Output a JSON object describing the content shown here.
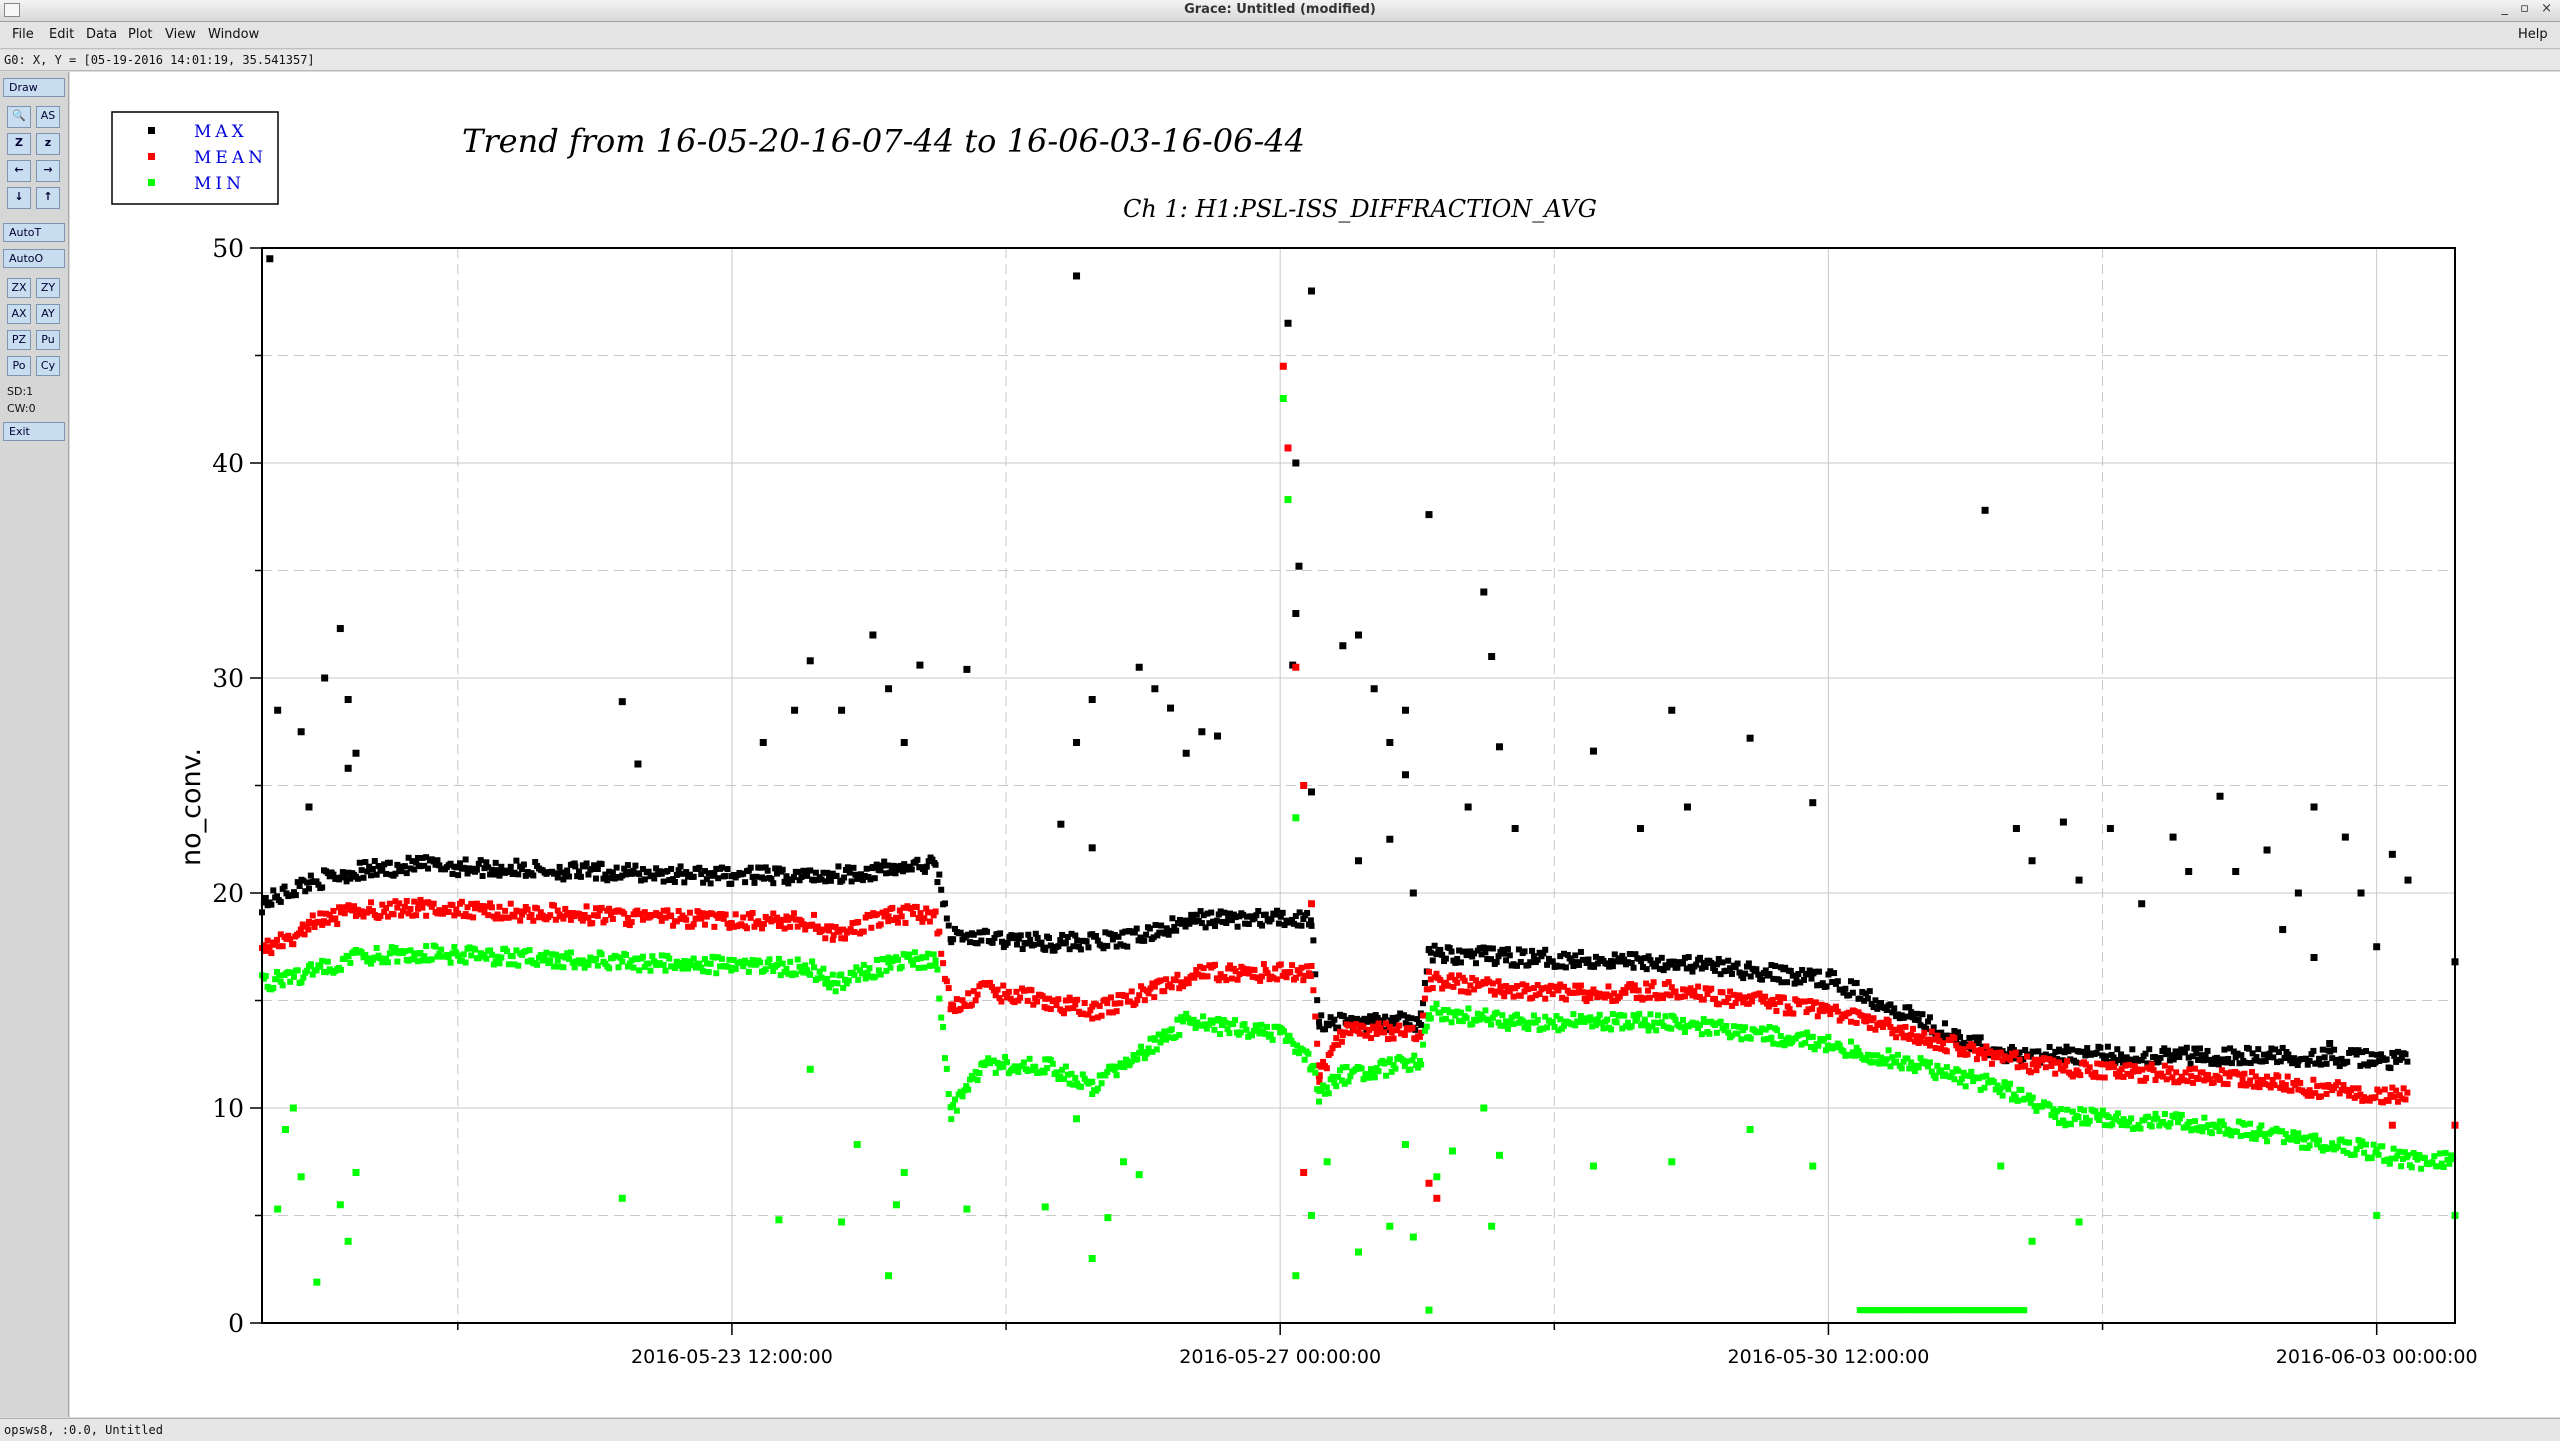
{
  "window": {
    "title": "Grace: Untitled (modified)",
    "controls": [
      "_",
      "▫",
      "×"
    ]
  },
  "menu": {
    "items": [
      "File",
      "Edit",
      "Data",
      "Plot",
      "View",
      "Window"
    ],
    "help": "Help"
  },
  "locator": "G0: X, Y = [05-19-2016 14:01:19, 35.541357]",
  "toolbar": {
    "draw": "Draw",
    "pair_buttons": [
      [
        "🔍",
        "AS"
      ],
      [
        "Z",
        "z"
      ],
      [
        "←",
        "→"
      ],
      [
        "↓",
        "↑"
      ]
    ],
    "autot": "AutoT",
    "autoo": "AutoO",
    "ops": [
      [
        "ZX",
        "ZY"
      ],
      [
        "AX",
        "AY"
      ],
      [
        "PZ",
        "Pu"
      ],
      [
        "Po",
        "Cy"
      ]
    ],
    "sd": "SD:1",
    "cw": "CW:0",
    "exit": "Exit"
  },
  "status_bottom": "opsws8, :0.0, Untitled",
  "chart_data": {
    "type": "scatter",
    "title": "Trend from 16-05-20-16-07-44 to 16-06-03-16-06-44",
    "subtitle": "Ch 1: H1:PSL-ISS_DIFFRACTION_AVG",
    "xlabel": "",
    "ylabel": "no_conv.",
    "ylim": [
      0,
      50
    ],
    "xlim": [
      0,
      14
    ],
    "yticks": [
      0,
      10,
      20,
      30,
      40,
      50
    ],
    "xticks": [
      {
        "x": 3.0,
        "label": "2016-05-23 12:00:00"
      },
      {
        "x": 6.5,
        "label": "2016-05-27 00:00:00"
      },
      {
        "x": 10.0,
        "label": "2016-05-30 12:00:00"
      },
      {
        "x": 13.5,
        "label": "2016-06-03 00:00:00"
      }
    ],
    "x_unit_note": "days",
    "grid": true,
    "legend_position": "top-left",
    "legend": [
      {
        "name": "MAX",
        "color": "#000000"
      },
      {
        "name": "MEAN",
        "color": "#ff0000"
      },
      {
        "name": "MIN",
        "color": "#00ff00"
      }
    ],
    "series": [
      {
        "name": "MAX",
        "color": "#000000",
        "baseline": [
          [
            0.0,
            19.5
          ],
          [
            0.3,
            20.5
          ],
          [
            0.6,
            21.0
          ],
          [
            1.0,
            21.3
          ],
          [
            2.0,
            21.0
          ],
          [
            3.0,
            20.8
          ],
          [
            3.5,
            20.8
          ],
          [
            3.9,
            21.0
          ],
          [
            4.1,
            21.2
          ],
          [
            4.3,
            21.3
          ],
          [
            4.4,
            18.0
          ],
          [
            5.0,
            17.7
          ],
          [
            5.5,
            17.8
          ],
          [
            6.0,
            18.8
          ],
          [
            6.7,
            18.8
          ],
          [
            6.75,
            14.0
          ],
          [
            7.4,
            14.0
          ],
          [
            7.45,
            17.2
          ],
          [
            8.0,
            17.0
          ],
          [
            9.0,
            16.8
          ],
          [
            9.7,
            16.2
          ],
          [
            10.0,
            16.0
          ],
          [
            11.1,
            12.5
          ],
          [
            13.0,
            12.4
          ],
          [
            13.7,
            12.2
          ]
        ],
        "scattered": [
          [
            0.05,
            49.5
          ],
          [
            0.1,
            28.5
          ],
          [
            0.25,
            27.5
          ],
          [
            0.3,
            24.0
          ],
          [
            0.4,
            30.0
          ],
          [
            0.5,
            32.3
          ],
          [
            0.55,
            29.0
          ],
          [
            0.6,
            26.5
          ],
          [
            0.55,
            25.8
          ],
          [
            3.2,
            27.0
          ],
          [
            3.4,
            28.5
          ],
          [
            3.5,
            30.8
          ],
          [
            3.7,
            28.5
          ],
          [
            3.9,
            32.0
          ],
          [
            4.0,
            29.5
          ],
          [
            4.1,
            27.0
          ],
          [
            4.2,
            30.6
          ],
          [
            4.5,
            30.4
          ],
          [
            2.3,
            28.9
          ],
          [
            2.4,
            26.0
          ],
          [
            5.2,
            27.0
          ],
          [
            5.3,
            29.0
          ],
          [
            5.6,
            30.5
          ],
          [
            5.7,
            29.5
          ],
          [
            5.8,
            28.6
          ],
          [
            5.9,
            26.5
          ],
          [
            6.0,
            27.5
          ],
          [
            6.1,
            27.3
          ],
          [
            5.1,
            23.2
          ],
          [
            5.3,
            22.1
          ],
          [
            5.2,
            48.7
          ],
          [
            6.55,
            46.5
          ],
          [
            6.7,
            48.0
          ],
          [
            6.6,
            40.0
          ],
          [
            6.62,
            35.2
          ],
          [
            6.6,
            33.0
          ],
          [
            6.58,
            30.6
          ],
          [
            6.9,
            31.5
          ],
          [
            7.0,
            32.0
          ],
          [
            7.1,
            29.5
          ],
          [
            7.3,
            28.5
          ],
          [
            6.7,
            24.7
          ],
          [
            7.2,
            27.0
          ],
          [
            7.3,
            25.5
          ],
          [
            7.2,
            22.5
          ],
          [
            7.0,
            21.5
          ],
          [
            7.35,
            20.0
          ],
          [
            7.45,
            37.6
          ],
          [
            7.8,
            34.0
          ],
          [
            7.85,
            31.0
          ],
          [
            7.9,
            26.8
          ],
          [
            8.0,
            23.0
          ],
          [
            7.7,
            24.0
          ],
          [
            8.5,
            26.6
          ],
          [
            9.0,
            28.5
          ],
          [
            9.5,
            27.2
          ],
          [
            8.8,
            23.0
          ],
          [
            9.1,
            24.0
          ],
          [
            9.9,
            24.2
          ],
          [
            11.0,
            37.8
          ],
          [
            11.2,
            23.0
          ],
          [
            11.3,
            21.5
          ],
          [
            11.5,
            23.3
          ],
          [
            11.6,
            20.6
          ],
          [
            11.8,
            23.0
          ],
          [
            12.0,
            19.5
          ],
          [
            12.2,
            22.6
          ],
          [
            12.3,
            21.0
          ],
          [
            12.5,
            24.5
          ],
          [
            12.6,
            21.0
          ],
          [
            12.8,
            22.0
          ],
          [
            13.0,
            20.0
          ],
          [
            13.1,
            24.0
          ],
          [
            13.3,
            22.6
          ],
          [
            13.4,
            20.0
          ],
          [
            13.5,
            17.5
          ],
          [
            13.6,
            21.8
          ],
          [
            13.7,
            20.6
          ],
          [
            13.1,
            17.0
          ],
          [
            13.2,
            13.0
          ],
          [
            12.9,
            18.3
          ],
          [
            14.0,
            16.8
          ]
        ]
      },
      {
        "name": "MEAN",
        "color": "#ff0000",
        "baseline": [
          [
            0.0,
            17.5
          ],
          [
            0.2,
            17.8
          ],
          [
            0.3,
            18.5
          ],
          [
            0.6,
            19.2
          ],
          [
            1.0,
            19.3
          ],
          [
            2.0,
            19.0
          ],
          [
            3.0,
            18.7
          ],
          [
            3.5,
            18.7
          ],
          [
            3.65,
            18.0
          ],
          [
            4.0,
            19.0
          ],
          [
            4.3,
            19.0
          ],
          [
            4.4,
            14.5
          ],
          [
            4.6,
            15.5
          ],
          [
            5.0,
            15.0
          ],
          [
            5.3,
            14.5
          ],
          [
            5.7,
            15.5
          ],
          [
            6.0,
            16.3
          ],
          [
            6.7,
            16.3
          ],
          [
            6.75,
            11.5
          ],
          [
            6.9,
            13.5
          ],
          [
            7.4,
            13.6
          ],
          [
            7.45,
            16.0
          ],
          [
            8.0,
            15.5
          ],
          [
            8.5,
            15.3
          ],
          [
            9.0,
            15.5
          ],
          [
            9.5,
            15.0
          ],
          [
            10.0,
            14.5
          ],
          [
            11.1,
            12.3
          ],
          [
            11.5,
            11.8
          ],
          [
            12.5,
            11.5
          ],
          [
            13.0,
            11.0
          ],
          [
            13.7,
            10.5
          ]
        ],
        "scattered": [
          [
            6.52,
            44.5
          ],
          [
            6.55,
            40.7
          ],
          [
            6.6,
            30.5
          ],
          [
            6.65,
            25.0
          ],
          [
            6.7,
            19.5
          ],
          [
            6.65,
            7.0
          ],
          [
            6.75,
            11.5
          ],
          [
            7.45,
            6.5
          ],
          [
            7.5,
            5.8
          ],
          [
            13.6,
            9.2
          ],
          [
            14.0,
            9.2
          ]
        ]
      },
      {
        "name": "MIN",
        "color": "#00ff00",
        "baseline": [
          [
            0.0,
            15.8
          ],
          [
            0.3,
            16.3
          ],
          [
            0.6,
            17.0
          ],
          [
            1.0,
            17.2
          ],
          [
            2.0,
            16.9
          ],
          [
            3.0,
            16.6
          ],
          [
            3.5,
            16.5
          ],
          [
            3.65,
            15.8
          ],
          [
            4.0,
            16.7
          ],
          [
            4.3,
            17.0
          ],
          [
            4.4,
            9.8
          ],
          [
            4.6,
            12.0
          ],
          [
            5.0,
            12.0
          ],
          [
            5.3,
            11.0
          ],
          [
            5.7,
            13.0
          ],
          [
            5.9,
            14.0
          ],
          [
            6.5,
            13.5
          ],
          [
            6.7,
            12.0
          ],
          [
            6.75,
            10.5
          ],
          [
            6.9,
            11.5
          ],
          [
            7.4,
            12.2
          ],
          [
            7.45,
            14.5
          ],
          [
            8.0,
            14.0
          ],
          [
            9.0,
            14.0
          ],
          [
            10.0,
            13.0
          ],
          [
            11.1,
            11.0
          ],
          [
            11.5,
            9.6
          ],
          [
            12.5,
            9.2
          ],
          [
            13.0,
            8.5
          ],
          [
            13.5,
            8.0
          ],
          [
            13.7,
            7.5
          ],
          [
            14.0,
            7.6
          ]
        ],
        "flat_segment": [
          [
            10.2,
            0.6
          ],
          [
            11.25,
            0.6
          ]
        ],
        "scattered": [
          [
            0.1,
            5.3
          ],
          [
            0.15,
            9.0
          ],
          [
            0.2,
            10.0
          ],
          [
            0.25,
            6.8
          ],
          [
            0.35,
            1.9
          ],
          [
            0.5,
            5.5
          ],
          [
            0.55,
            3.8
          ],
          [
            0.6,
            7.0
          ],
          [
            2.3,
            5.8
          ],
          [
            3.3,
            4.8
          ],
          [
            3.5,
            11.8
          ],
          [
            3.7,
            4.7
          ],
          [
            3.8,
            8.3
          ],
          [
            4.0,
            2.2
          ],
          [
            4.05,
            5.5
          ],
          [
            4.1,
            7.0
          ],
          [
            4.5,
            5.3
          ],
          [
            5.0,
            5.4
          ],
          [
            5.2,
            9.5
          ],
          [
            5.5,
            7.5
          ],
          [
            5.4,
            4.9
          ],
          [
            5.6,
            6.9
          ],
          [
            5.3,
            3.0
          ],
          [
            6.52,
            43.0
          ],
          [
            6.55,
            38.3
          ],
          [
            6.6,
            23.5
          ],
          [
            6.6,
            2.2
          ],
          [
            6.7,
            5.0
          ],
          [
            6.8,
            7.5
          ],
          [
            7.0,
            3.3
          ],
          [
            7.2,
            4.5
          ],
          [
            7.3,
            8.3
          ],
          [
            7.35,
            4.0
          ],
          [
            7.45,
            0.6
          ],
          [
            7.5,
            6.8
          ],
          [
            7.6,
            8.0
          ],
          [
            7.8,
            10.0
          ],
          [
            7.9,
            7.8
          ],
          [
            7.85,
            4.5
          ],
          [
            8.5,
            7.3
          ],
          [
            9.0,
            7.5
          ],
          [
            9.5,
            9.0
          ],
          [
            9.9,
            7.3
          ],
          [
            11.1,
            7.3
          ],
          [
            11.3,
            3.8
          ],
          [
            11.6,
            4.7
          ],
          [
            13.5,
            5.0
          ],
          [
            14.0,
            5.0
          ]
        ]
      }
    ]
  }
}
